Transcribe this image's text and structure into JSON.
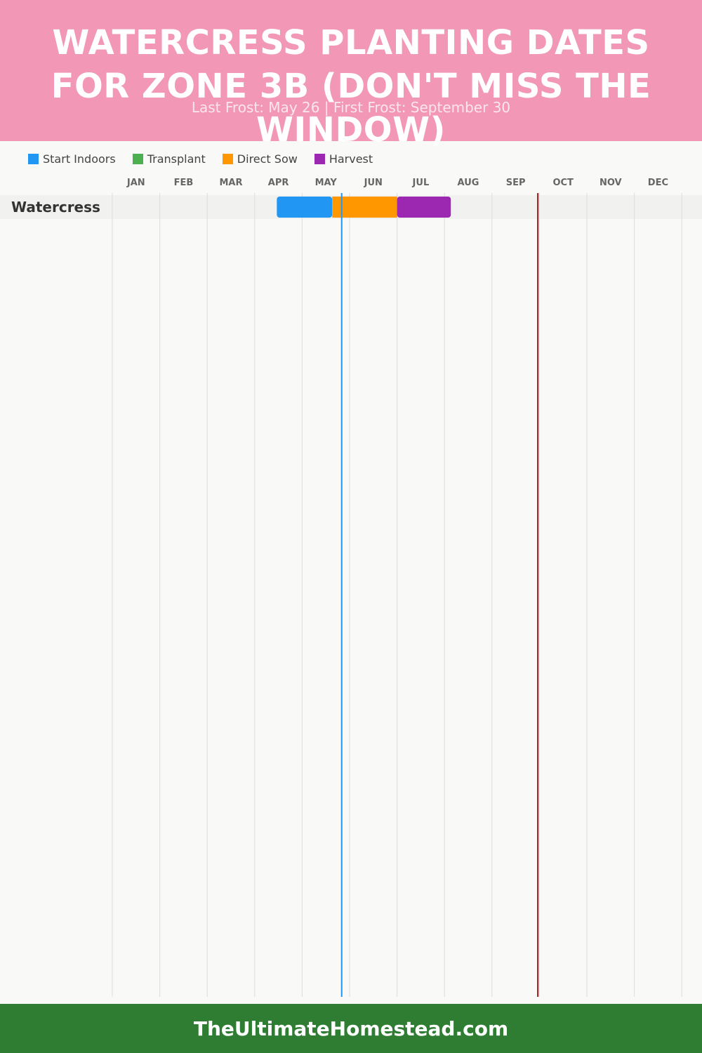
{
  "header": {
    "title": "WATERCRESS PLANTING DATES FOR ZONE 3B (DON'T MISS THE WINDOW)",
    "subtitle": "Last Frost: May 26 | First Frost: September 30"
  },
  "legend": [
    {
      "label": "Start Indoors",
      "color": "#2196f3"
    },
    {
      "label": "Transplant",
      "color": "#4caf50"
    },
    {
      "label": "Direct Sow",
      "color": "#ff9800"
    },
    {
      "label": "Harvest",
      "color": "#9c27b0"
    }
  ],
  "chart_data": {
    "type": "gantt",
    "categories": [
      "JAN",
      "FEB",
      "MAR",
      "APR",
      "MAY",
      "JUN",
      "JUL",
      "AUG",
      "SEP",
      "OCT",
      "NOV",
      "DEC"
    ],
    "rows": [
      {
        "label": "Watercress",
        "segments": [
          {
            "series": "Start Indoors",
            "start": "Apr 15",
            "end": "May 20",
            "color": "#2196f3"
          },
          {
            "series": "Direct Sow",
            "start": "May 20",
            "end": "Jul 1",
            "color": "#ff9800"
          },
          {
            "series": "Harvest",
            "start": "Jul 1",
            "end": "Aug 5",
            "color": "#9c27b0"
          }
        ]
      }
    ],
    "reference_lines": [
      {
        "name": "Last Frost",
        "date": "May 26",
        "color": "#2196f3"
      },
      {
        "name": "First Frost",
        "date": "September 30",
        "color": "#8b1a1a"
      }
    ]
  },
  "footer": {
    "site": "TheUltimateHomestead.com"
  }
}
